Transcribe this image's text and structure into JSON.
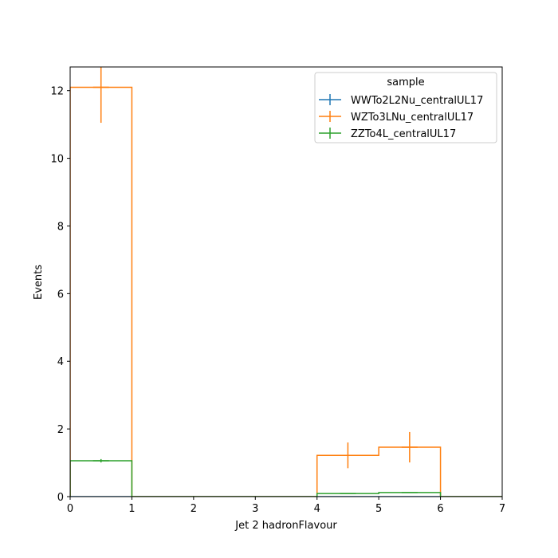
{
  "chart_data": {
    "type": "step",
    "xlabel": "Jet 2 hadronFlavour",
    "ylabel": "Events",
    "xlim": [
      0,
      7
    ],
    "ylim": [
      0,
      12.7
    ],
    "xticks": [
      "0",
      "1",
      "2",
      "3",
      "4",
      "5",
      "6",
      "7"
    ],
    "yticks": [
      "0",
      "2",
      "4",
      "6",
      "8",
      "10",
      "12"
    ],
    "grid": false,
    "legend": {
      "title": "sample",
      "placement": "top-right"
    },
    "bin_edges": [
      0,
      1,
      2,
      3,
      4,
      5,
      6,
      7
    ],
    "series": [
      {
        "name": "WWTo2L2Nu_centralUL17",
        "color": "#1f77b4",
        "values": [
          0,
          0,
          0,
          0,
          0,
          0,
          0
        ],
        "errors": [
          0,
          0,
          0,
          0,
          0,
          0,
          0
        ]
      },
      {
        "name": "WZTo3LNu_centralUL17",
        "color": "#ff7f0e",
        "values": [
          12.1,
          0,
          0,
          0,
          1.22,
          1.46,
          0
        ],
        "errors": [
          1.05,
          0,
          0,
          0,
          0.38,
          0.45,
          0
        ]
      },
      {
        "name": "ZZTo4L_centralUL17",
        "color": "#2ca02c",
        "values": [
          1.06,
          0,
          0,
          0,
          0.09,
          0.12,
          0
        ],
        "errors": [
          0.05,
          0,
          0,
          0,
          0.01,
          0.01,
          0
        ]
      }
    ]
  }
}
